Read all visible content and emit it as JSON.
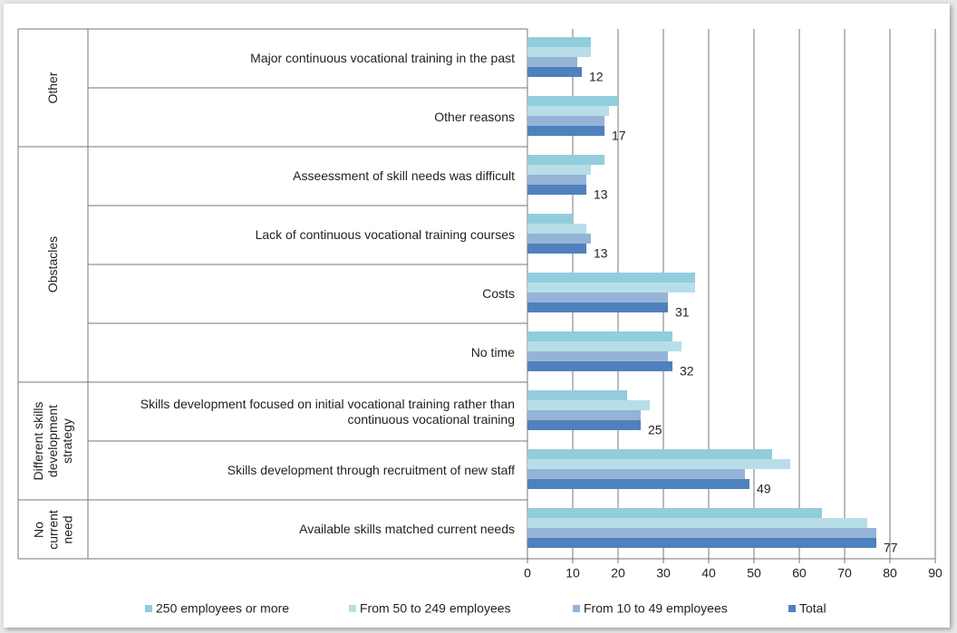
{
  "chart_data": {
    "type": "bar",
    "orientation": "horizontal",
    "groups": [
      {
        "name": "Other",
        "categories": [
          "Major continuous vocational training in the past",
          "Other reasons"
        ]
      },
      {
        "name": "Obstacles",
        "categories": [
          "Asseessment of skill needs was difficult",
          "Lack of continuous vocational training courses",
          "Costs",
          "No time"
        ]
      },
      {
        "name": "Different skills development strategy",
        "categories": [
          "Skills development focused on initial vocational training rather than continuous vocational training",
          "Skills development through recruitment of new staff"
        ]
      },
      {
        "name": "No current need",
        "categories": [
          "Available skills matched current needs"
        ]
      }
    ],
    "series": [
      {
        "name": "250 employees or more",
        "color": "#92cddc",
        "values": [
          14,
          20,
          17,
          10,
          37,
          32,
          22,
          54,
          65
        ]
      },
      {
        "name": "From 50 to 249 employees",
        "color": "#b7dee8",
        "values": [
          14,
          18,
          14,
          13,
          37,
          34,
          27,
          58,
          75
        ]
      },
      {
        "name": "From 10 to 49 employees",
        "color": "#95b3d7",
        "values": [
          11,
          17,
          13,
          14,
          31,
          31,
          25,
          48,
          77
        ]
      },
      {
        "name": "Total",
        "color": "#4f81bd",
        "values": [
          12,
          17,
          13,
          13,
          31,
          32,
          25,
          49,
          77
        ]
      }
    ],
    "xlim": [
      0,
      90
    ],
    "xticks": [
      0,
      10,
      20,
      30,
      40,
      50,
      60,
      70,
      80,
      90
    ],
    "grid": true,
    "legend": "bottom"
  }
}
